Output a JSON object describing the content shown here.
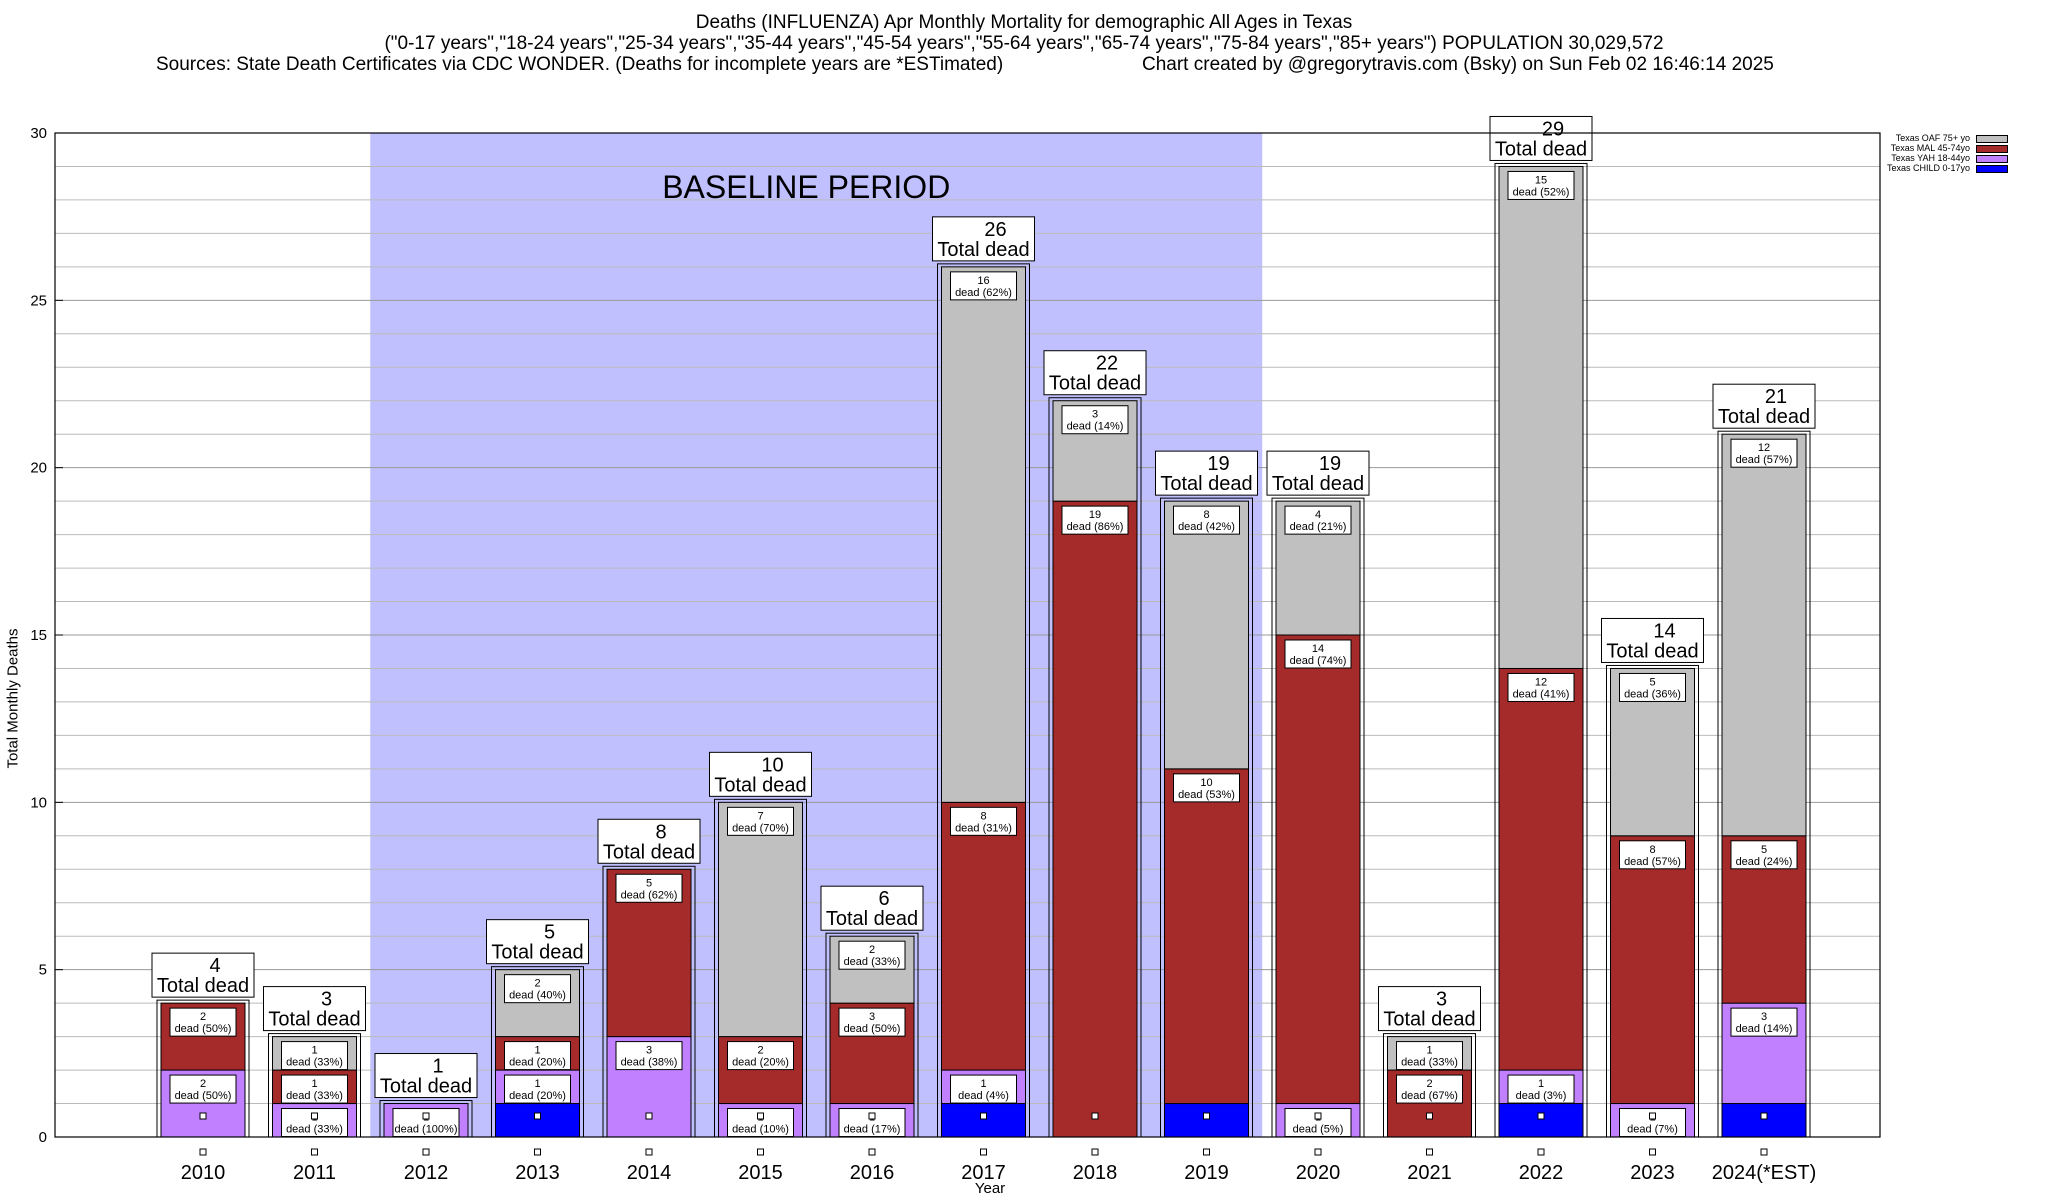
{
  "header": {
    "line1": "Deaths (INFLUENZA) Apr Monthly Mortality for demographic All Ages in Texas",
    "line2": "(\"0-17 years\",\"18-24 years\",\"25-34 years\",\"35-44 years\",\"45-54 years\",\"55-64 years\",\"65-74 years\",\"75-84 years\",\"85+ years\") POPULATION 30,029,572",
    "line3_left": "Sources: State Death Certificates via CDC WONDER. (Deaths for incomplete years are *ESTimated)",
    "line3_right": "Chart created by @gregorytravis.com (Bsky) on Sun Feb 02 16:46:14 2025"
  },
  "colors": {
    "child": "#0000ff",
    "yah": "#c080ff",
    "mal": "#a52a2a",
    "oaf": "#c0c0c0",
    "baseline": "#c0c0ff"
  },
  "chart_data": {
    "type": "bar",
    "stacked": true,
    "xlabel": "Year",
    "ylabel": "Total Monthly Deaths",
    "ylim": [
      0,
      30
    ],
    "yticks": [
      0,
      5,
      10,
      15,
      20,
      25,
      30
    ],
    "grid": true,
    "legend_position": "top-right",
    "baseline_label": "BASELINE PERIOD",
    "baseline_range": [
      "2012",
      "2019"
    ],
    "total_suffix": "Total dead",
    "categories": [
      "2010",
      "2011",
      "2012",
      "2013",
      "2014",
      "2015",
      "2016",
      "2017",
      "2018",
      "2019",
      "2020",
      "2021",
      "2022",
      "2023",
      "2024(*EST)"
    ],
    "totals": [
      4,
      3,
      1,
      5,
      8,
      10,
      6,
      26,
      22,
      19,
      19,
      3,
      29,
      14,
      21
    ],
    "series": [
      {
        "name": "Texas CHILD 0-17yo",
        "color": "#0000ff",
        "values": [
          0,
          0,
          0,
          1,
          0,
          0,
          0,
          1,
          0,
          1,
          0,
          0,
          1,
          0,
          1
        ],
        "labels": [
          "",
          "",
          "",
          "",
          "",
          "",
          "",
          "",
          "",
          "",
          "",
          "",
          "",
          "",
          ""
        ]
      },
      {
        "name": "Texas YAH 18-44yo",
        "color": "#c080ff",
        "values": [
          2,
          1,
          1,
          1,
          3,
          1,
          1,
          1,
          0,
          0,
          1,
          0,
          1,
          1,
          3
        ],
        "labels": [
          "dead (50%)",
          "dead (33%)",
          "dead (100%)",
          "dead (20%)",
          "dead (38%)",
          "dead (10%)",
          "dead (17%)",
          "dead (4%)",
          "",
          "",
          "dead (5%)",
          "",
          "dead (3%)",
          "dead (7%)",
          "dead (14%)"
        ]
      },
      {
        "name": "Texas MAL 45-74yo",
        "color": "#a52a2a",
        "values": [
          2,
          1,
          0,
          1,
          5,
          2,
          3,
          8,
          19,
          10,
          14,
          2,
          12,
          8,
          5
        ],
        "labels": [
          "dead (50%)",
          "dead (33%)",
          "",
          "dead (20%)",
          "dead (62%)",
          "dead (20%)",
          "dead (50%)",
          "dead (31%)",
          "dead (86%)",
          "dead (53%)",
          "dead (74%)",
          "dead (67%)",
          "dead (41%)",
          "dead (57%)",
          "dead (24%)"
        ]
      },
      {
        "name": "Texas OAF 75+ yo",
        "color": "#c0c0c0",
        "values": [
          0,
          1,
          0,
          2,
          0,
          7,
          2,
          16,
          3,
          8,
          4,
          1,
          15,
          5,
          12
        ],
        "labels": [
          "",
          "dead (33%)",
          "",
          "dead (40%)",
          "",
          "dead (70%)",
          "dead (33%)",
          "dead (62%)",
          "dead (14%)",
          "dead (42%)",
          "dead (21%)",
          "dead (33%)",
          "dead (52%)",
          "dead (36%)",
          "dead (57%)"
        ]
      }
    ]
  }
}
